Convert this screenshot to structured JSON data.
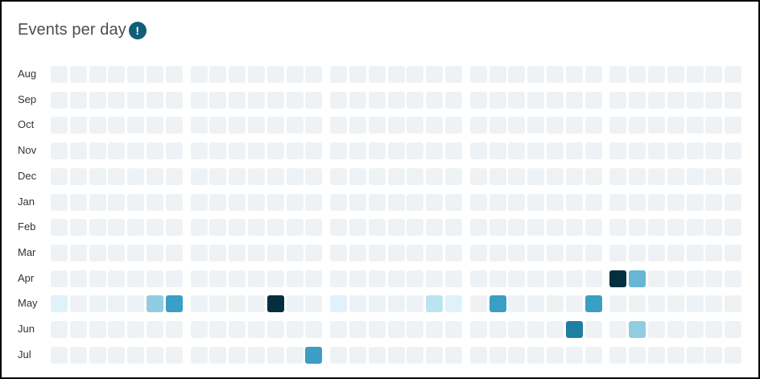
{
  "title": "Events per day",
  "info_icon": {
    "name": "info-icon",
    "glyph": "!",
    "color": "#0f5f78"
  },
  "chart_data": {
    "type": "heatmap",
    "title": "Events per day",
    "rows": [
      "Aug",
      "Sep",
      "Oct",
      "Nov",
      "Dec",
      "Jan",
      "Feb",
      "Mar",
      "Apr",
      "May",
      "Jun",
      "Jul"
    ],
    "columns_per_row": 35,
    "column_groups": 5,
    "columns_per_group": 7,
    "empty_color": "#eff2f4",
    "level_colors": [
      "#eff2f4",
      "#dff2f9",
      "#bce3f0",
      "#90cde3",
      "#66b6d4",
      "#3b9ec4",
      "#1f7fa3",
      "#032f40"
    ],
    "active_cells": [
      {
        "row": "Apr",
        "col": 28,
        "level": 7
      },
      {
        "row": "Apr",
        "col": 29,
        "level": 4
      },
      {
        "row": "May",
        "col": 0,
        "level": 1
      },
      {
        "row": "May",
        "col": 5,
        "level": 3
      },
      {
        "row": "May",
        "col": 6,
        "level": 5
      },
      {
        "row": "May",
        "col": 11,
        "level": 7
      },
      {
        "row": "May",
        "col": 14,
        "level": 1
      },
      {
        "row": "May",
        "col": 19,
        "level": 2
      },
      {
        "row": "May",
        "col": 20,
        "level": 1
      },
      {
        "row": "May",
        "col": 22,
        "level": 5
      },
      {
        "row": "May",
        "col": 27,
        "level": 5
      },
      {
        "row": "Jun",
        "col": 26,
        "level": 6
      },
      {
        "row": "Jun",
        "col": 29,
        "level": 3
      },
      {
        "row": "Jul",
        "col": 13,
        "level": 5
      }
    ]
  }
}
